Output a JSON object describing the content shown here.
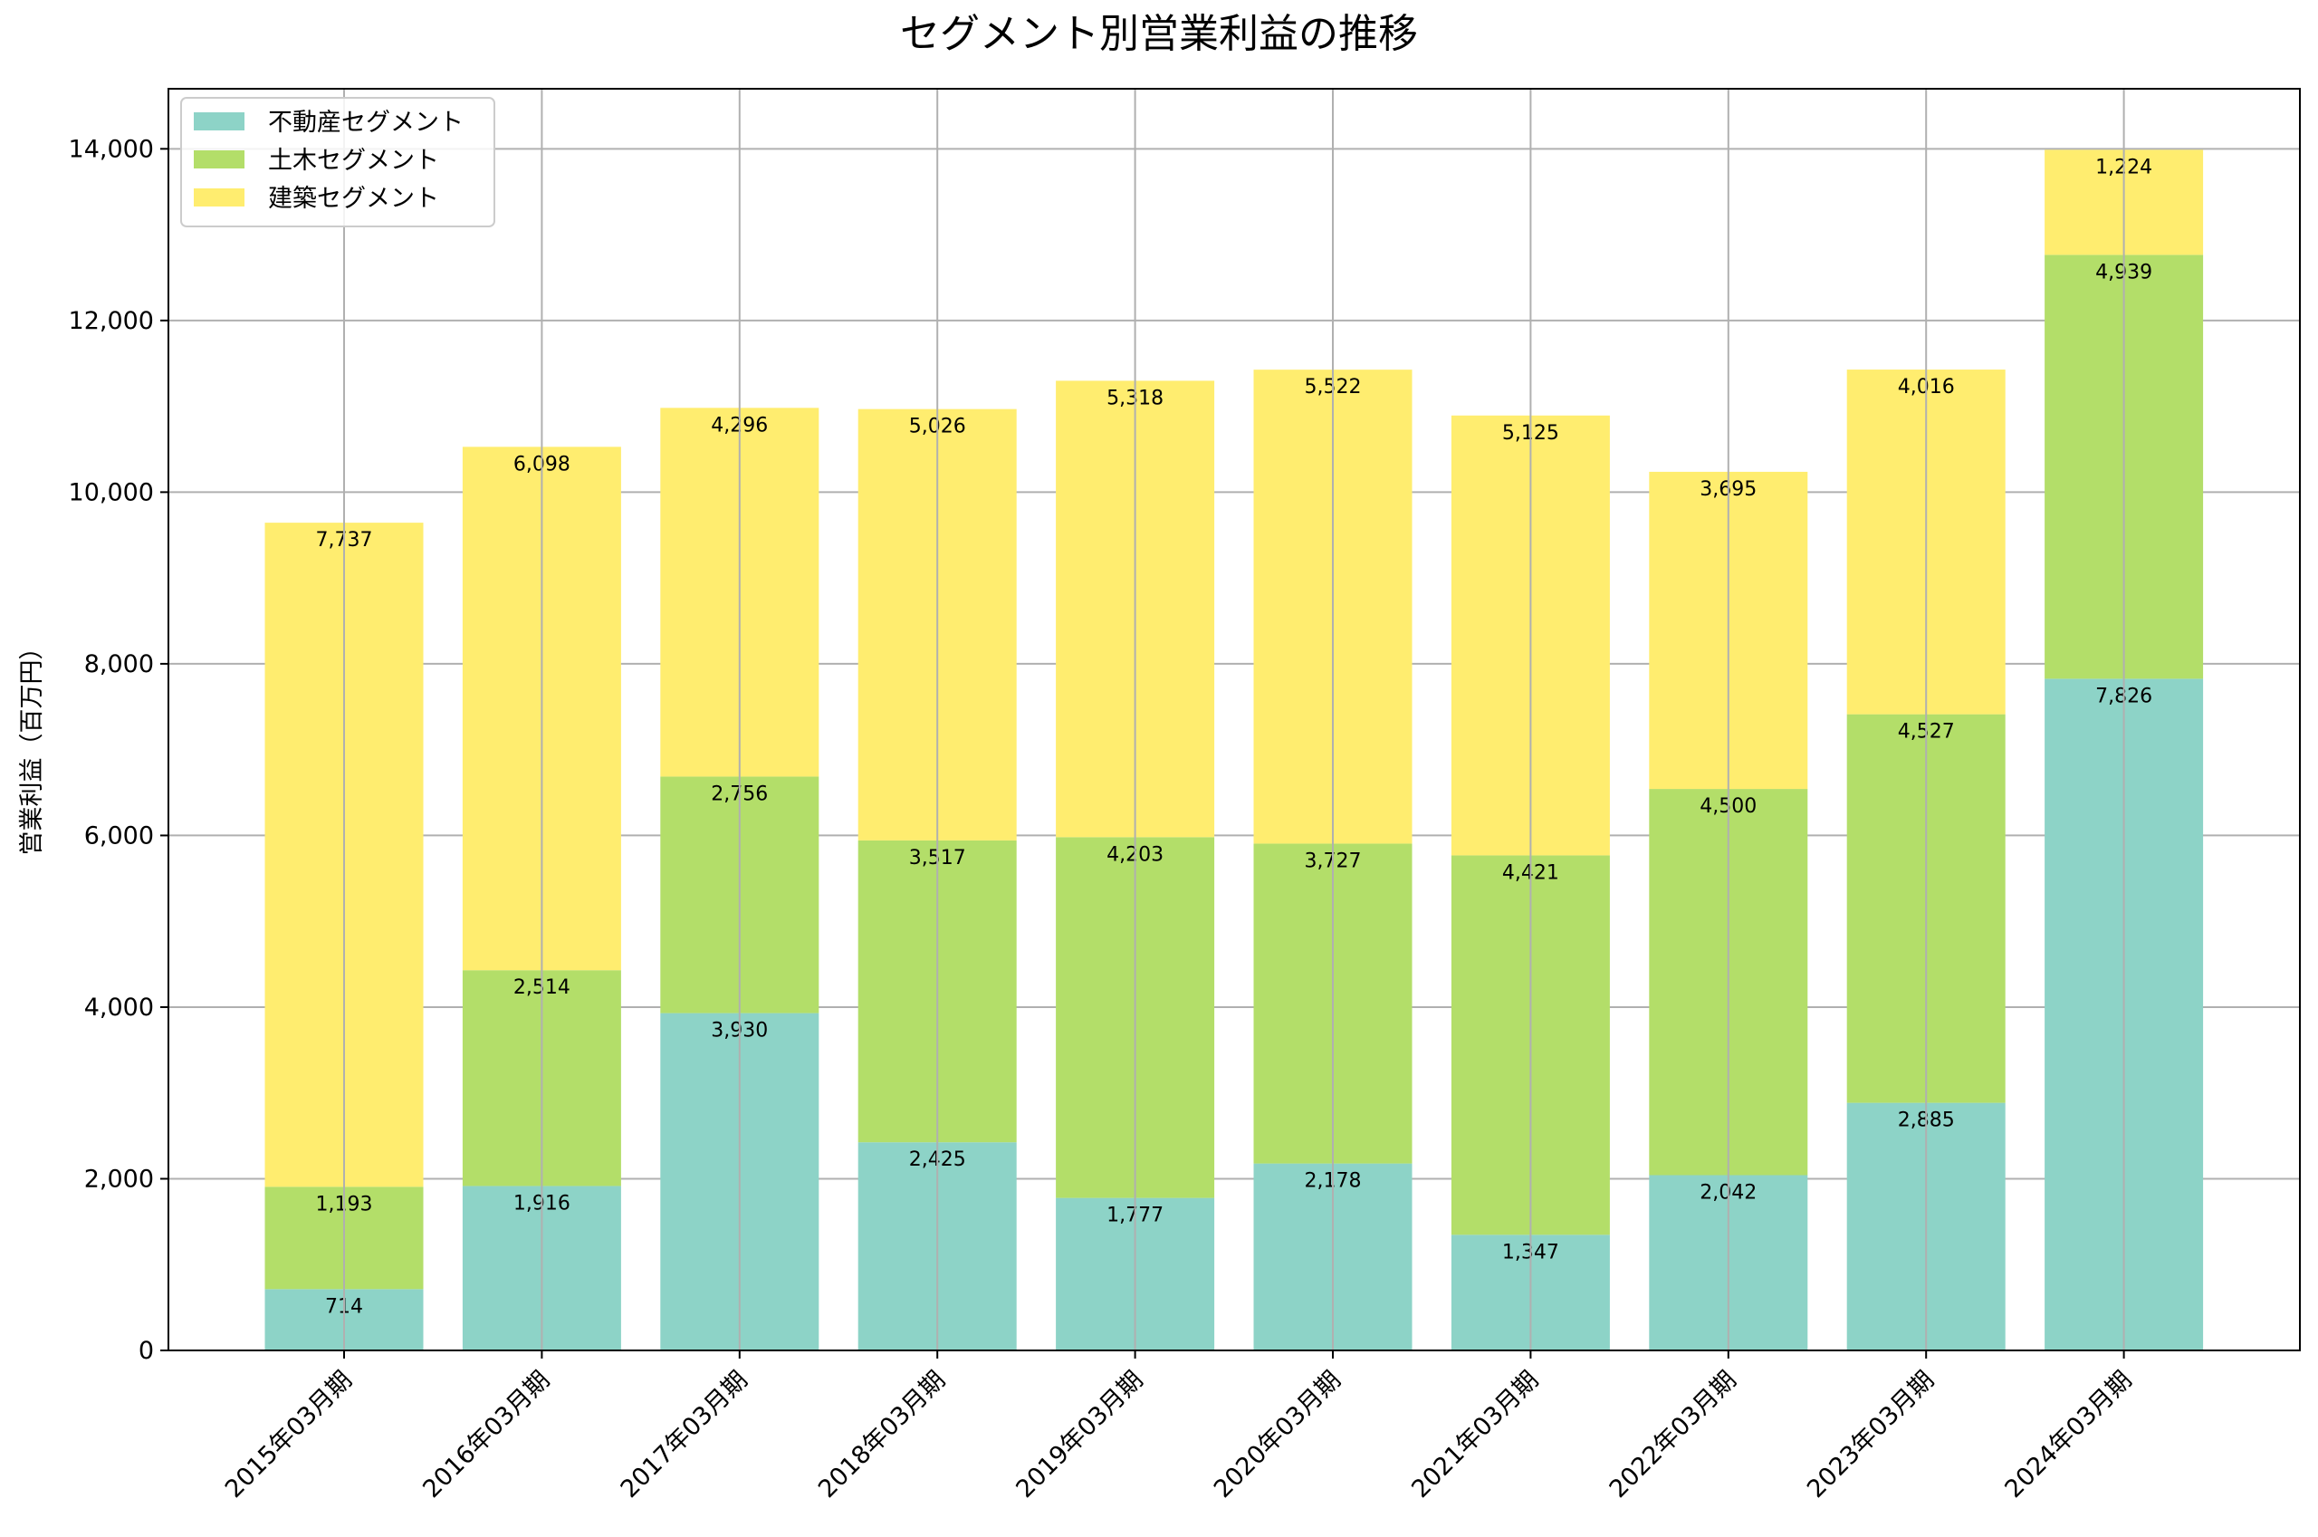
{
  "chart_data": {
    "type": "bar",
    "stacked": true,
    "title": "セグメント別営業利益の推移",
    "xlabel": "",
    "ylabel": "営業利益（百万円）",
    "ylim": [
      0,
      14700
    ],
    "yticks": [
      0,
      2000,
      4000,
      6000,
      8000,
      10000,
      12000,
      14000
    ],
    "ytick_labels": [
      "0",
      "2,000",
      "4,000",
      "6,000",
      "8,000",
      "10,000",
      "12,000",
      "14,000"
    ],
    "grid": true,
    "legend_position": "top-left",
    "categories": [
      "2015年03月期",
      "2016年03月期",
      "2017年03月期",
      "2018年03月期",
      "2019年03月期",
      "2020年03月期",
      "2021年03月期",
      "2022年03月期",
      "2023年03月期",
      "2024年03月期"
    ],
    "series": [
      {
        "name": "不動産セグメント",
        "color": "#8dd3c7",
        "values": [
          714,
          1916,
          3930,
          2425,
          1777,
          2178,
          1347,
          2042,
          2885,
          7826
        ],
        "labels": [
          "714",
          "1,916",
          "3,930",
          "2,425",
          "1,777",
          "2,178",
          "1,347",
          "2,042",
          "2,885",
          "7,826"
        ]
      },
      {
        "name": "土木セグメント",
        "color": "#b3de69",
        "values": [
          1193,
          2514,
          2756,
          3517,
          4203,
          3727,
          4421,
          4500,
          4527,
          4939
        ],
        "labels": [
          "1,193",
          "2,514",
          "2,756",
          "3,517",
          "4,203",
          "3,727",
          "4,421",
          "4,500",
          "4,527",
          "4,939"
        ]
      },
      {
        "name": "建築セグメント",
        "color": "#ffed6f",
        "values": [
          7737,
          6098,
          4296,
          5026,
          5318,
          5522,
          5125,
          3695,
          4016,
          1224
        ],
        "labels": [
          "7,737",
          "6,098",
          "4,296",
          "5,026",
          "5,318",
          "5,522",
          "5,125",
          "3,695",
          "4,016",
          "1,224"
        ]
      }
    ]
  }
}
